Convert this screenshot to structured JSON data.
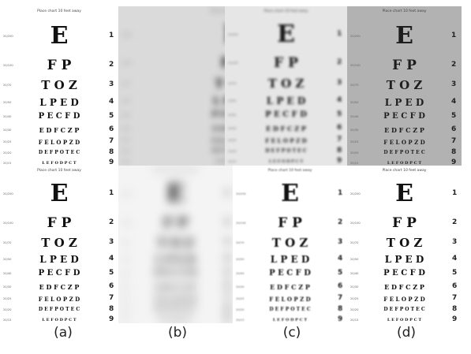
{
  "chart": {
    "title": "Place chart 10 feet away",
    "rows": [
      {
        "snellen": "20/200",
        "letters": "E",
        "number": "1"
      },
      {
        "snellen": "20/100",
        "letters": "F P",
        "number": "2"
      },
      {
        "snellen": "20/70",
        "letters": "T O Z",
        "number": "3"
      },
      {
        "snellen": "20/50",
        "letters": "L P E D",
        "number": "4"
      },
      {
        "snellen": "20/40",
        "letters": "P E C F D",
        "number": "5"
      },
      {
        "snellen": "20/30",
        "letters": "E D F C Z P",
        "number": "6"
      },
      {
        "snellen": "20/25",
        "letters": "F E L O P Z D",
        "number": "7"
      },
      {
        "snellen": "20/20",
        "letters": "D E F P O T E C",
        "number": "8"
      },
      {
        "snellen": "20/15",
        "letters": "L E F O D P C T",
        "number": "9"
      }
    ]
  },
  "captions": {
    "a": "(a)",
    "b": "(b)",
    "c": "(c)",
    "d": "(d)"
  }
}
